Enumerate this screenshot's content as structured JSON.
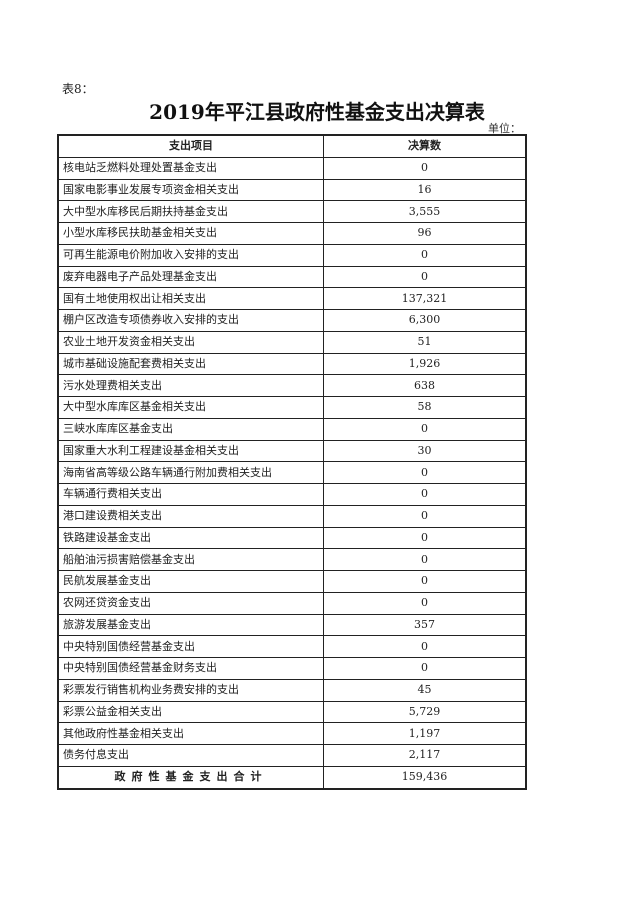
{
  "table_label": "表8：",
  "title": "2019年平江县政府性基金支出决算表",
  "unit_label": "单位：",
  "columns": [
    "支出项目",
    "决算数"
  ],
  "rows": [
    {
      "name": "核电站乏燃料处理处置基金支出",
      "value": "0"
    },
    {
      "name": "国家电影事业发展专项资金相关支出",
      "value": "16"
    },
    {
      "name": "大中型水库移民后期扶持基金支出",
      "value": "3,555"
    },
    {
      "name": "小型水库移民扶助基金相关支出",
      "value": "96"
    },
    {
      "name": "可再生能源电价附加收入安排的支出",
      "value": "0"
    },
    {
      "name": "废弃电器电子产品处理基金支出",
      "value": "0"
    },
    {
      "name": "国有土地使用权出让相关支出",
      "value": "137,321"
    },
    {
      "name": "棚户区改造专项债券收入安排的支出",
      "value": "6,300"
    },
    {
      "name": "农业土地开发资金相关支出",
      "value": "51"
    },
    {
      "name": "城市基础设施配套费相关支出",
      "value": "1,926"
    },
    {
      "name": "污水处理费相关支出",
      "value": "638"
    },
    {
      "name": "大中型水库库区基金相关支出",
      "value": "58"
    },
    {
      "name": "三峡水库库区基金支出",
      "value": "0"
    },
    {
      "name": "国家重大水利工程建设基金相关支出",
      "value": "30"
    },
    {
      "name": "海南省高等级公路车辆通行附加费相关支出",
      "value": "0"
    },
    {
      "name": "车辆通行费相关支出",
      "value": "0"
    },
    {
      "name": "港口建设费相关支出",
      "value": "0"
    },
    {
      "name": "铁路建设基金支出",
      "value": "0"
    },
    {
      "name": "船舶油污损害赔偿基金支出",
      "value": "0"
    },
    {
      "name": "民航发展基金支出",
      "value": "0"
    },
    {
      "name": "农网还贷资金支出",
      "value": "0"
    },
    {
      "name": "旅游发展基金支出",
      "value": "357"
    },
    {
      "name": "中央特别国债经营基金支出",
      "value": "0"
    },
    {
      "name": "中央特别国债经营基金财务支出",
      "value": "0"
    },
    {
      "name": "彩票发行销售机构业务费安排的支出",
      "value": "45"
    },
    {
      "name": "彩票公益金相关支出",
      "value": "5,729"
    },
    {
      "name": "其他政府性基金相关支出",
      "value": "1,197"
    },
    {
      "name": "债务付息支出",
      "value": "2,117"
    }
  ],
  "total": {
    "name": "政府性基金支出合计",
    "value": "159,436"
  }
}
